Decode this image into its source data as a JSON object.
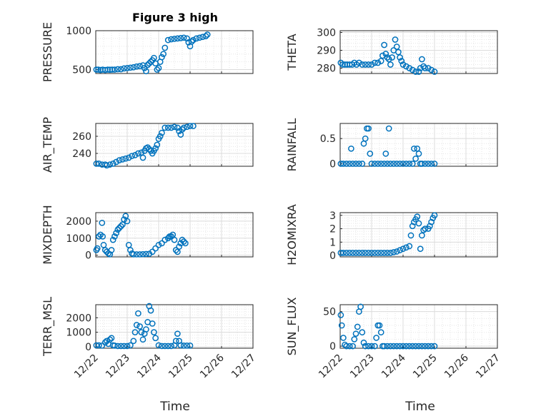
{
  "figure": {
    "title": "Figure 3 high"
  },
  "chart_data": [
    {
      "type": "scatter",
      "name": "pressure",
      "ylabel": "PRESSURE",
      "ylim": [
        450,
        1000
      ],
      "yticks": [
        500,
        1000
      ],
      "xlim": [
        0,
        5
      ],
      "color": "#0072BD",
      "points": [
        [
          0.02,
          500
        ],
        [
          0.08,
          500
        ],
        [
          0.15,
          495
        ],
        [
          0.22,
          500
        ],
        [
          0.3,
          495
        ],
        [
          0.38,
          500
        ],
        [
          0.45,
          498
        ],
        [
          0.52,
          500
        ],
        [
          0.6,
          500
        ],
        [
          0.7,
          505
        ],
        [
          0.8,
          505
        ],
        [
          0.9,
          515
        ],
        [
          1.0,
          520
        ],
        [
          1.1,
          525
        ],
        [
          1.2,
          530
        ],
        [
          1.3,
          540
        ],
        [
          1.4,
          545
        ],
        [
          1.5,
          555
        ],
        [
          1.55,
          520
        ],
        [
          1.6,
          480
        ],
        [
          1.65,
          560
        ],
        [
          1.7,
          580
        ],
        [
          1.75,
          600
        ],
        [
          1.8,
          620
        ],
        [
          1.85,
          650
        ],
        [
          1.9,
          580
        ],
        [
          1.95,
          500
        ],
        [
          2.0,
          520
        ],
        [
          2.05,
          600
        ],
        [
          2.1,
          660
        ],
        [
          2.15,
          700
        ],
        [
          2.2,
          780
        ],
        [
          2.3,
          880
        ],
        [
          2.4,
          890
        ],
        [
          2.5,
          895
        ],
        [
          2.6,
          900
        ],
        [
          2.7,
          905
        ],
        [
          2.8,
          910
        ],
        [
          2.9,
          900
        ],
        [
          2.95,
          850
        ],
        [
          3.0,
          800
        ],
        [
          3.05,
          860
        ],
        [
          3.1,
          880
        ],
        [
          3.2,
          900
        ],
        [
          3.3,
          910
        ],
        [
          3.4,
          920
        ],
        [
          3.5,
          930
        ],
        [
          3.55,
          950
        ]
      ]
    },
    {
      "type": "scatter",
      "name": "theta",
      "ylabel": "THETA",
      "ylim": [
        277,
        301
      ],
      "yticks": [
        280,
        290,
        300
      ],
      "xlim": [
        0,
        5
      ],
      "color": "#0072BD",
      "points": [
        [
          0.02,
          283
        ],
        [
          0.08,
          282
        ],
        [
          0.15,
          282
        ],
        [
          0.22,
          282
        ],
        [
          0.3,
          282
        ],
        [
          0.38,
          282
        ],
        [
          0.45,
          283
        ],
        [
          0.52,
          282
        ],
        [
          0.6,
          283
        ],
        [
          0.7,
          282
        ],
        [
          0.8,
          282
        ],
        [
          0.9,
          282
        ],
        [
          1.0,
          282
        ],
        [
          1.1,
          283
        ],
        [
          1.2,
          283
        ],
        [
          1.3,
          284
        ],
        [
          1.35,
          287
        ],
        [
          1.4,
          293
        ],
        [
          1.45,
          288
        ],
        [
          1.5,
          286
        ],
        [
          1.55,
          285
        ],
        [
          1.6,
          282
        ],
        [
          1.65,
          286
        ],
        [
          1.7,
          290
        ],
        [
          1.75,
          296
        ],
        [
          1.8,
          292
        ],
        [
          1.85,
          289
        ],
        [
          1.9,
          286
        ],
        [
          1.95,
          284
        ],
        [
          2.0,
          282
        ],
        [
          2.1,
          281
        ],
        [
          2.2,
          280
        ],
        [
          2.3,
          279
        ],
        [
          2.4,
          278
        ],
        [
          2.5,
          278
        ],
        [
          2.55,
          280
        ],
        [
          2.6,
          285
        ],
        [
          2.65,
          281
        ],
        [
          2.7,
          280
        ],
        [
          2.8,
          280
        ],
        [
          2.9,
          279
        ],
        [
          3.0,
          278
        ]
      ]
    },
    {
      "type": "scatter",
      "name": "air-temp",
      "ylabel": "AIR_TEMP",
      "ylim": [
        225,
        275
      ],
      "yticks": [
        240,
        260
      ],
      "xlim": [
        0,
        5
      ],
      "color": "#0072BD",
      "points": [
        [
          0.02,
          228
        ],
        [
          0.1,
          228
        ],
        [
          0.2,
          227
        ],
        [
          0.3,
          227
        ],
        [
          0.35,
          226
        ],
        [
          0.45,
          227
        ],
        [
          0.55,
          228
        ],
        [
          0.65,
          230
        ],
        [
          0.75,
          232
        ],
        [
          0.85,
          233
        ],
        [
          0.95,
          234
        ],
        [
          1.05,
          235
        ],
        [
          1.15,
          237
        ],
        [
          1.25,
          238
        ],
        [
          1.35,
          240
        ],
        [
          1.45,
          241
        ],
        [
          1.5,
          235
        ],
        [
          1.55,
          243
        ],
        [
          1.6,
          246
        ],
        [
          1.65,
          247
        ],
        [
          1.7,
          245
        ],
        [
          1.75,
          243
        ],
        [
          1.8,
          240
        ],
        [
          1.85,
          243
        ],
        [
          1.9,
          246
        ],
        [
          1.95,
          250
        ],
        [
          2.0,
          257
        ],
        [
          2.05,
          260
        ],
        [
          2.1,
          264
        ],
        [
          2.2,
          270
        ],
        [
          2.3,
          270
        ],
        [
          2.4,
          270
        ],
        [
          2.5,
          271
        ],
        [
          2.6,
          270
        ],
        [
          2.65,
          266
        ],
        [
          2.7,
          262
        ],
        [
          2.75,
          268
        ],
        [
          2.8,
          270
        ],
        [
          2.9,
          271
        ],
        [
          3.0,
          272
        ],
        [
          3.1,
          272
        ]
      ]
    },
    {
      "type": "scatter",
      "name": "rainfall",
      "ylabel": "RAINFALL",
      "ylim": [
        -0.05,
        0.8
      ],
      "yticks": [
        0,
        0.5
      ],
      "xlim": [
        0,
        5
      ],
      "color": "#0072BD",
      "points": [
        [
          0.02,
          0
        ],
        [
          0.1,
          0
        ],
        [
          0.2,
          0
        ],
        [
          0.3,
          0
        ],
        [
          0.35,
          0.3
        ],
        [
          0.4,
          0
        ],
        [
          0.5,
          0
        ],
        [
          0.6,
          0
        ],
        [
          0.7,
          0
        ],
        [
          0.75,
          0.4
        ],
        [
          0.8,
          0.5
        ],
        [
          0.85,
          0.7
        ],
        [
          0.9,
          0.7
        ],
        [
          0.95,
          0.2
        ],
        [
          1.0,
          0
        ],
        [
          1.1,
          0
        ],
        [
          1.2,
          0
        ],
        [
          1.3,
          0
        ],
        [
          1.4,
          0
        ],
        [
          1.45,
          0.2
        ],
        [
          1.5,
          0
        ],
        [
          1.55,
          0.7
        ],
        [
          1.6,
          0
        ],
        [
          1.7,
          0
        ],
        [
          1.8,
          0
        ],
        [
          1.9,
          0
        ],
        [
          2.0,
          0
        ],
        [
          2.1,
          0
        ],
        [
          2.2,
          0
        ],
        [
          2.3,
          0
        ],
        [
          2.35,
          0.3
        ],
        [
          2.4,
          0.1
        ],
        [
          2.45,
          0.3
        ],
        [
          2.5,
          0.2
        ],
        [
          2.55,
          0
        ],
        [
          2.6,
          0
        ],
        [
          2.7,
          0
        ],
        [
          2.8,
          0
        ],
        [
          2.9,
          0
        ],
        [
          3.0,
          0
        ]
      ]
    },
    {
      "type": "scatter",
      "name": "mixdepth",
      "ylabel": "MIXDEPTH",
      "ylim": [
        -100,
        2500
      ],
      "yticks": [
        0,
        1000,
        2000
      ],
      "xlim": [
        0,
        5
      ],
      "color": "#0072BD",
      "points": [
        [
          0.02,
          300
        ],
        [
          0.05,
          400
        ],
        [
          0.1,
          1100
        ],
        [
          0.15,
          1200
        ],
        [
          0.2,
          1900
        ],
        [
          0.22,
          1100
        ],
        [
          0.25,
          600
        ],
        [
          0.3,
          300
        ],
        [
          0.35,
          200
        ],
        [
          0.4,
          100
        ],
        [
          0.45,
          50
        ],
        [
          0.5,
          300
        ],
        [
          0.55,
          900
        ],
        [
          0.6,
          1100
        ],
        [
          0.65,
          1300
        ],
        [
          0.7,
          1500
        ],
        [
          0.75,
          1600
        ],
        [
          0.8,
          1700
        ],
        [
          0.85,
          1800
        ],
        [
          0.9,
          2100
        ],
        [
          0.95,
          2300
        ],
        [
          1.0,
          2000
        ],
        [
          1.05,
          600
        ],
        [
          1.1,
          300
        ],
        [
          1.15,
          100
        ],
        [
          1.2,
          50
        ],
        [
          1.3,
          50
        ],
        [
          1.4,
          50
        ],
        [
          1.5,
          60
        ],
        [
          1.6,
          70
        ],
        [
          1.7,
          80
        ],
        [
          1.8,
          200
        ],
        [
          1.9,
          400
        ],
        [
          2.0,
          600
        ],
        [
          2.1,
          700
        ],
        [
          2.2,
          900
        ],
        [
          2.3,
          1000
        ],
        [
          2.35,
          1100
        ],
        [
          2.4,
          1100
        ],
        [
          2.45,
          1200
        ],
        [
          2.5,
          900
        ],
        [
          2.55,
          300
        ],
        [
          2.6,
          200
        ],
        [
          2.65,
          500
        ],
        [
          2.7,
          700
        ],
        [
          2.75,
          900
        ],
        [
          2.8,
          800
        ],
        [
          2.85,
          700
        ]
      ]
    },
    {
      "type": "scatter",
      "name": "h2omixra",
      "ylabel": "H2OMIXRA",
      "ylim": [
        -0.1,
        3.2
      ],
      "yticks": [
        0,
        1,
        2,
        3
      ],
      "xlim": [
        0,
        5
      ],
      "color": "#0072BD",
      "points": [
        [
          0.02,
          0.2
        ],
        [
          0.1,
          0.2
        ],
        [
          0.2,
          0.2
        ],
        [
          0.3,
          0.2
        ],
        [
          0.4,
          0.2
        ],
        [
          0.5,
          0.2
        ],
        [
          0.6,
          0.2
        ],
        [
          0.7,
          0.2
        ],
        [
          0.8,
          0.2
        ],
        [
          0.9,
          0.2
        ],
        [
          1.0,
          0.2
        ],
        [
          1.1,
          0.2
        ],
        [
          1.2,
          0.2
        ],
        [
          1.3,
          0.2
        ],
        [
          1.4,
          0.2
        ],
        [
          1.5,
          0.2
        ],
        [
          1.6,
          0.2
        ],
        [
          1.7,
          0.25
        ],
        [
          1.8,
          0.3
        ],
        [
          1.9,
          0.4
        ],
        [
          2.0,
          0.5
        ],
        [
          2.1,
          0.6
        ],
        [
          2.2,
          0.7
        ],
        [
          2.25,
          1.5
        ],
        [
          2.3,
          2.2
        ],
        [
          2.35,
          2.5
        ],
        [
          2.4,
          2.7
        ],
        [
          2.45,
          2.9
        ],
        [
          2.5,
          2.4
        ],
        [
          2.55,
          0.5
        ],
        [
          2.6,
          1.5
        ],
        [
          2.65,
          1.9
        ],
        [
          2.7,
          2.0
        ],
        [
          2.8,
          2.0
        ],
        [
          2.85,
          2.2
        ],
        [
          2.9,
          2.5
        ],
        [
          2.95,
          2.8
        ],
        [
          3.0,
          3.0
        ]
      ]
    },
    {
      "type": "scatter",
      "name": "terr-msl",
      "ylabel": "TERR_MSL",
      "ylim": [
        -100,
        2900
      ],
      "yticks": [
        0,
        1000,
        2000
      ],
      "xlim": [
        0,
        5
      ],
      "color": "#0072BD",
      "points": [
        [
          0.02,
          100
        ],
        [
          0.1,
          100
        ],
        [
          0.2,
          80
        ],
        [
          0.3,
          300
        ],
        [
          0.35,
          400
        ],
        [
          0.4,
          200
        ],
        [
          0.45,
          500
        ],
        [
          0.5,
          600
        ],
        [
          0.55,
          100
        ],
        [
          0.6,
          80
        ],
        [
          0.7,
          50
        ],
        [
          0.8,
          50
        ],
        [
          0.9,
          50
        ],
        [
          1.0,
          50
        ],
        [
          1.1,
          100
        ],
        [
          1.2,
          400
        ],
        [
          1.25,
          1000
        ],
        [
          1.3,
          1500
        ],
        [
          1.35,
          2300
        ],
        [
          1.4,
          1400
        ],
        [
          1.45,
          1000
        ],
        [
          1.5,
          500
        ],
        [
          1.55,
          900
        ],
        [
          1.6,
          1200
        ],
        [
          1.65,
          1700
        ],
        [
          1.7,
          2800
        ],
        [
          1.75,
          2500
        ],
        [
          1.8,
          1600
        ],
        [
          1.85,
          1000
        ],
        [
          1.9,
          600
        ],
        [
          2.0,
          100
        ],
        [
          2.1,
          50
        ],
        [
          2.2,
          50
        ],
        [
          2.3,
          50
        ],
        [
          2.4,
          50
        ],
        [
          2.5,
          100
        ],
        [
          2.55,
          400
        ],
        [
          2.6,
          900
        ],
        [
          2.65,
          400
        ],
        [
          2.7,
          100
        ],
        [
          2.8,
          80
        ],
        [
          2.9,
          80
        ],
        [
          3.0,
          80
        ]
      ]
    },
    {
      "type": "scatter",
      "name": "sun-flux",
      "ylabel": "SUN_FLUX",
      "ylim": [
        -3,
        60
      ],
      "yticks": [
        0,
        50
      ],
      "xlim": [
        0,
        5
      ],
      "color": "#0072BD",
      "points": [
        [
          0.02,
          45
        ],
        [
          0.05,
          30
        ],
        [
          0.1,
          12
        ],
        [
          0.15,
          2
        ],
        [
          0.2,
          0
        ],
        [
          0.3,
          0
        ],
        [
          0.4,
          0
        ],
        [
          0.45,
          10
        ],
        [
          0.5,
          18
        ],
        [
          0.55,
          28
        ],
        [
          0.6,
          50
        ],
        [
          0.65,
          57
        ],
        [
          0.7,
          20
        ],
        [
          0.75,
          5
        ],
        [
          0.8,
          0
        ],
        [
          0.9,
          0
        ],
        [
          1.0,
          0
        ],
        [
          1.1,
          0
        ],
        [
          1.15,
          12
        ],
        [
          1.2,
          30
        ],
        [
          1.25,
          30
        ],
        [
          1.3,
          20
        ],
        [
          1.35,
          0
        ],
        [
          1.4,
          0
        ],
        [
          1.5,
          0
        ],
        [
          1.6,
          0
        ],
        [
          1.7,
          0
        ],
        [
          1.8,
          0
        ],
        [
          1.9,
          0
        ],
        [
          2.0,
          0
        ],
        [
          2.1,
          0
        ],
        [
          2.2,
          0
        ],
        [
          2.3,
          0
        ],
        [
          2.4,
          0
        ],
        [
          2.5,
          0
        ],
        [
          2.6,
          0
        ],
        [
          2.7,
          0
        ],
        [
          2.8,
          0
        ],
        [
          2.9,
          0
        ],
        [
          3.0,
          0
        ]
      ]
    }
  ],
  "xaxis": {
    "label": "Time",
    "ticks": [
      "12/22",
      "12/23",
      "12/24",
      "12/25",
      "12/26",
      "12/27"
    ]
  }
}
